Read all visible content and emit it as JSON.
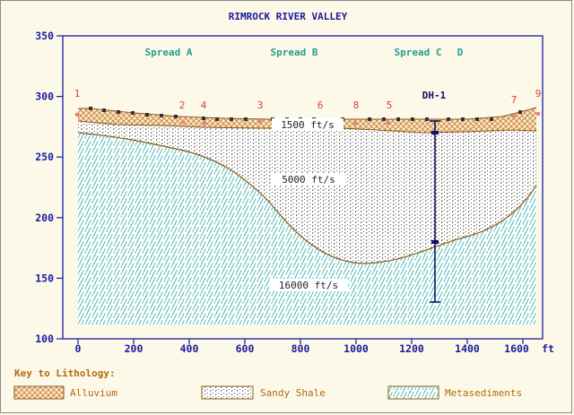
{
  "title": "RIMROCK RIVER VALLEY",
  "spreads": [
    "Spread A",
    "Spread B",
    "Spread C",
    "D"
  ],
  "y_ticks": [
    "350",
    "300",
    "250",
    "200",
    "150",
    "100"
  ],
  "x_ticks": [
    "0",
    "200",
    "400",
    "600",
    "800",
    "1000",
    "1200",
    "1400",
    "1600"
  ],
  "x_unit": "ft",
  "shots": [
    "1",
    "2",
    "4",
    "3",
    "6",
    "8",
    "5",
    "7",
    "9"
  ],
  "drill_hole": "DH-1",
  "velocities": {
    "alluvium": "1500 ft/s",
    "sandy_shale": "5000 ft/s",
    "metasediments": "16000 ft/s"
  },
  "legend": {
    "title": "Key to Lithology:",
    "items": [
      "Alluvium",
      "Sandy Shale",
      "Metasediments"
    ]
  },
  "colors": {
    "title": "#1a1aa0",
    "spread": "#1f9e8e",
    "shot": "#d94040",
    "boundary": "#8b5a1a",
    "drill": "#10106a",
    "meta_hatch": "#4ab7b0",
    "shale_dots": "#555555",
    "alluvium": "#c07a30"
  }
}
